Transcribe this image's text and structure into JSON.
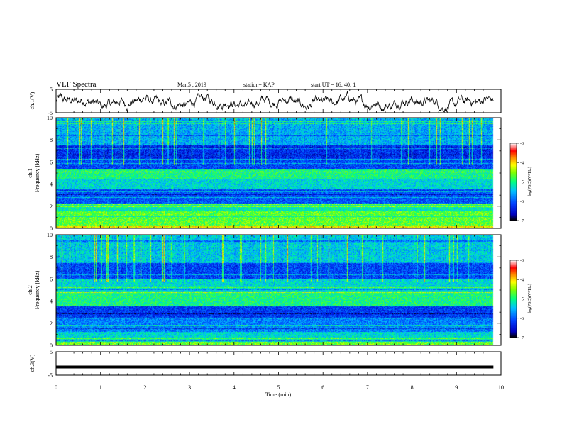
{
  "header": {
    "title": "VLF Spectra",
    "date": "Mar.5 , 2019",
    "station": "station= KAP",
    "start": "start  UT =   16: 40: 1"
  },
  "chart_data": [
    {
      "type": "line",
      "panel": "ch1-waveform",
      "ylabel": "ch.1(V)",
      "ylim": [
        -5,
        5
      ],
      "yticks": [
        "5",
        "-5"
      ],
      "xlim": [
        0,
        10
      ],
      "description_series": "ch.1 voltage trace"
    },
    {
      "type": "heatmap",
      "panel": "ch1-spectrogram",
      "ylabel": "ch.1\nFrequency (kHz)",
      "ylabel_line1": "ch.1",
      "ylabel_line2": "Frequency (kHz)",
      "ylim": [
        0,
        10
      ],
      "yticks": [
        "0",
        "2",
        "4",
        "6",
        "8",
        "10"
      ],
      "xlim": [
        0,
        10
      ],
      "colorbar": {
        "label": "log(PSD)(V²/Hz)",
        "range": [
          -7,
          -3
        ],
        "ticks": [
          "-3",
          "-4",
          "-5",
          "-6",
          "-7"
        ]
      }
    },
    {
      "type": "heatmap",
      "panel": "ch2-spectrogram",
      "ylabel_line1": "ch.2",
      "ylabel_line2": "Frequency (kHz)",
      "ylim": [
        0,
        10
      ],
      "yticks": [
        "0",
        "2",
        "4",
        "6",
        "8",
        "10"
      ],
      "xlim": [
        0,
        10
      ],
      "colorbar": {
        "label": "log(PSD)(V²/Hz)",
        "range": [
          -7,
          -3
        ],
        "ticks": [
          "-3",
          "-4",
          "-5",
          "-6",
          "-7"
        ]
      }
    },
    {
      "type": "line",
      "panel": "ch3-waveform",
      "ylabel": "ch.3(V)",
      "ylim": [
        -5,
        5
      ],
      "yticks": [
        "5",
        "-5"
      ],
      "xlim": [
        0,
        10
      ],
      "constant_value": -1.5
    }
  ],
  "xaxis": {
    "label": "Time  (min)",
    "ticks": [
      "0",
      "1",
      "2",
      "3",
      "4",
      "5",
      "6",
      "7",
      "8",
      "9",
      "10"
    ]
  }
}
